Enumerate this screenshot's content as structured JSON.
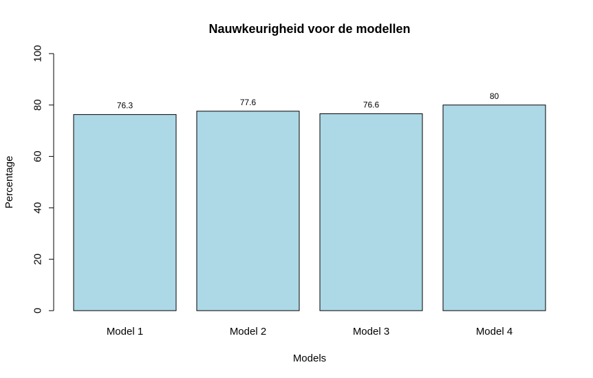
{
  "chart_data": {
    "type": "bar",
    "title": "Nauwkeurigheid voor de modellen",
    "xlabel": "Models",
    "ylabel": "Percentage",
    "categories": [
      "Model 1",
      "Model 2",
      "Model 3",
      "Model 4"
    ],
    "values": [
      76.3,
      77.6,
      76.6,
      80
    ],
    "data_labels": [
      "76.3",
      "77.6",
      "76.6",
      "80"
    ],
    "ylim": [
      0,
      100
    ],
    "yticks": [
      0,
      20,
      40,
      60,
      80,
      100
    ],
    "ytick_labels": [
      "0",
      "20",
      "40",
      "60",
      "80",
      "100"
    ],
    "grid": false,
    "legend": "none",
    "bar_color": "#ADD8E6",
    "border_color": "#000000"
  }
}
